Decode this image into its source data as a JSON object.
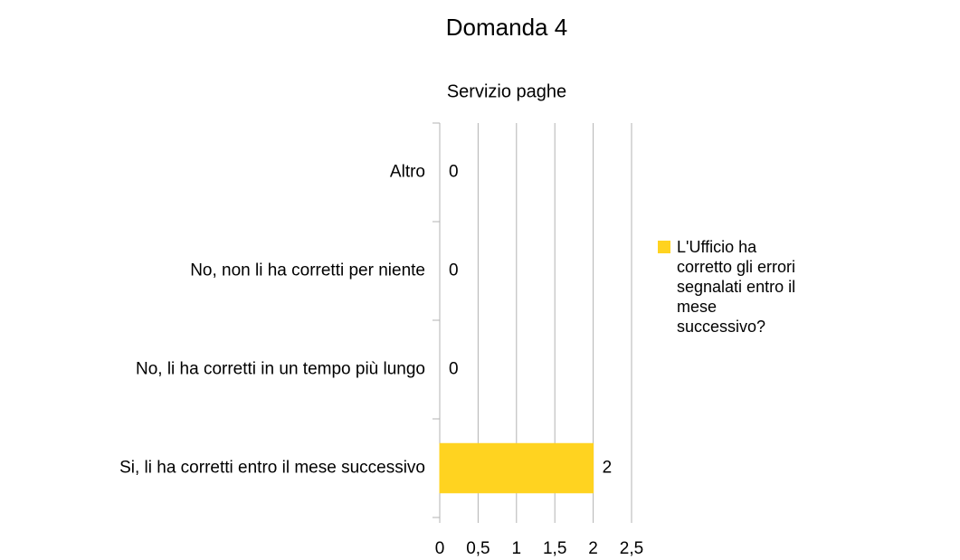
{
  "chart_data": {
    "type": "bar",
    "orientation": "horizontal",
    "title": "Domanda 4",
    "subtitle": "Servizio paghe",
    "categories": [
      "Altro",
      "No, non li ha corretti per niente",
      "No, li ha corretti in un tempo più lungo",
      "Si, li ha corretti entro il mese successivo"
    ],
    "series": [
      {
        "name": "L'Ufficio ha corretto gli errori segnalati entro il mese successivo?",
        "color": "#ffd320",
        "values": [
          0,
          0,
          0,
          2
        ]
      }
    ],
    "xlim": [
      0,
      2.5
    ],
    "xticks": [
      0,
      {
        "value": 0.5,
        "label": "0,5"
      },
      1,
      {
        "value": 1.5,
        "label": "1,5"
      },
      2,
      {
        "value": 2.5,
        "label": "2,5"
      }
    ],
    "grid": true,
    "legend": "right"
  }
}
